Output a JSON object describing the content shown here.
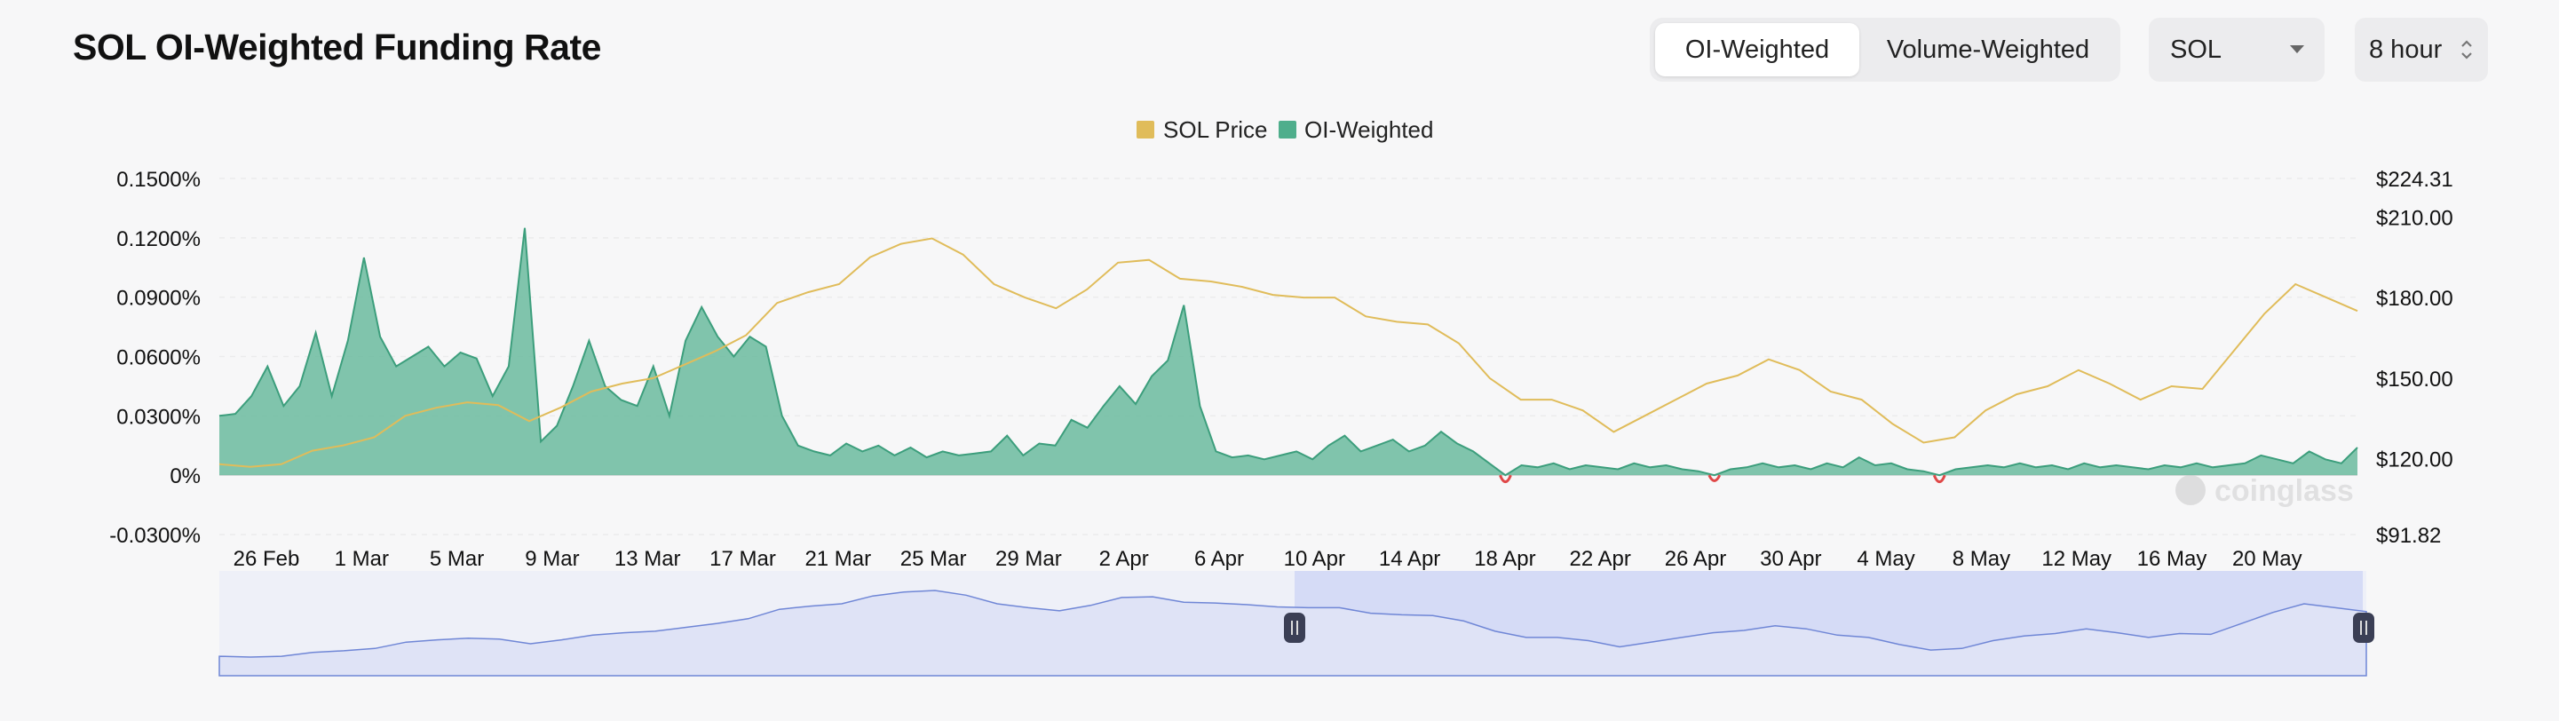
{
  "header": {
    "title": "SOL OI-Weighted Funding Rate",
    "tabs": [
      {
        "label": "OI-Weighted",
        "active": true
      },
      {
        "label": "Volume-Weighted",
        "active": false
      }
    ],
    "coin_select": {
      "value": "SOL",
      "icon": "caret-down-icon"
    },
    "interval_select": {
      "value": "8 hour",
      "icon": "updown-chevron-icon"
    }
  },
  "watermark": "coinglass",
  "colors": {
    "price": "#e0bc5a",
    "funding_pos_line": "#3c9e7c",
    "funding_pos_fill": "#6bbb9f",
    "funding_neg": "#e04848",
    "brush_line": "#6f86d6",
    "brush_fill": "#dfe3f6",
    "brush_selected": "#d5dbf6"
  },
  "chart_data": {
    "type": "area",
    "title": "SOL OI-Weighted Funding Rate",
    "legend": {
      "placement": "top-center",
      "items": [
        {
          "name": "SOL Price",
          "color": "#e0bc5a"
        },
        {
          "name": "OI-Weighted",
          "color": "#4fae8c"
        }
      ]
    },
    "x_ticks": [
      "26 Feb",
      "1 Mar",
      "5 Mar",
      "9 Mar",
      "13 Mar",
      "17 Mar",
      "21 Mar",
      "25 Mar",
      "29 Mar",
      "2 Apr",
      "6 Apr",
      "10 Apr",
      "14 Apr",
      "18 Apr",
      "22 Apr",
      "26 Apr",
      "30 Apr",
      "4 May",
      "8 May",
      "12 May",
      "16 May",
      "20 May"
    ],
    "y_left": {
      "ticks": [
        "0.1500%",
        "0.1200%",
        "0.0900%",
        "0.0600%",
        "0.0300%",
        "0%",
        "-0.0300%"
      ],
      "range": [
        -0.03,
        0.15
      ],
      "unit": "%"
    },
    "y_right": {
      "ticks": [
        "$224.31",
        "$210.00",
        "$180.00",
        "$150.00",
        "$120.00",
        "$91.82"
      ],
      "range": [
        91.82,
        224.31
      ]
    },
    "grid": true,
    "series": [
      {
        "name": "OI-Weighted",
        "axis": "left",
        "points": [
          [
            0,
            0.03
          ],
          [
            0.5,
            0.031
          ],
          [
            1,
            0.04
          ],
          [
            1.5,
            0.055
          ],
          [
            2,
            0.035
          ],
          [
            2.5,
            0.045
          ],
          [
            3,
            0.072
          ],
          [
            3.5,
            0.04
          ],
          [
            4,
            0.068
          ],
          [
            4.5,
            0.11
          ],
          [
            5,
            0.07
          ],
          [
            5.5,
            0.055
          ],
          [
            6,
            0.06
          ],
          [
            6.5,
            0.065
          ],
          [
            7,
            0.055
          ],
          [
            7.5,
            0.062
          ],
          [
            8,
            0.059
          ],
          [
            8.5,
            0.04
          ],
          [
            9,
            0.055
          ],
          [
            9.5,
            0.125
          ],
          [
            10,
            0.017
          ],
          [
            10.5,
            0.025
          ],
          [
            11,
            0.045
          ],
          [
            11.5,
            0.068
          ],
          [
            12,
            0.045
          ],
          [
            12.5,
            0.038
          ],
          [
            13,
            0.035
          ],
          [
            13.5,
            0.055
          ],
          [
            14,
            0.03
          ],
          [
            14.5,
            0.068
          ],
          [
            15,
            0.085
          ],
          [
            15.5,
            0.07
          ],
          [
            16,
            0.06
          ],
          [
            16.5,
            0.07
          ],
          [
            17,
            0.065
          ],
          [
            17.5,
            0.03
          ],
          [
            18,
            0.015
          ],
          [
            18.5,
            0.012
          ],
          [
            19,
            0.01
          ],
          [
            19.5,
            0.016
          ],
          [
            20,
            0.012
          ],
          [
            20.5,
            0.015
          ],
          [
            21,
            0.01
          ],
          [
            21.5,
            0.014
          ],
          [
            22,
            0.009
          ],
          [
            22.5,
            0.012
          ],
          [
            23,
            0.01
          ],
          [
            23.5,
            0.011
          ],
          [
            24,
            0.012
          ],
          [
            24.5,
            0.02
          ],
          [
            25,
            0.01
          ],
          [
            25.5,
            0.016
          ],
          [
            26,
            0.015
          ],
          [
            26.5,
            0.028
          ],
          [
            27,
            0.024
          ],
          [
            27.5,
            0.035
          ],
          [
            28,
            0.045
          ],
          [
            28.5,
            0.036
          ],
          [
            29,
            0.05
          ],
          [
            29.5,
            0.058
          ],
          [
            30,
            0.086
          ],
          [
            30.5,
            0.035
          ],
          [
            31,
            0.012
          ],
          [
            31.5,
            0.009
          ],
          [
            32,
            0.01
          ],
          [
            32.5,
            0.008
          ],
          [
            33,
            0.01
          ],
          [
            33.5,
            0.012
          ],
          [
            34,
            0.008
          ],
          [
            34.5,
            0.015
          ],
          [
            35,
            0.02
          ],
          [
            35.5,
            0.012
          ],
          [
            36,
            0.015
          ],
          [
            36.5,
            0.018
          ],
          [
            37,
            0.012
          ],
          [
            37.5,
            0.015
          ],
          [
            38,
            0.022
          ],
          [
            38.5,
            0.016
          ],
          [
            39,
            0.012
          ],
          [
            39.5,
            0.006
          ],
          [
            40,
            -0.004
          ],
          [
            40.5,
            0.005
          ],
          [
            41,
            0.004
          ],
          [
            41.5,
            0.006
          ],
          [
            42,
            0.003
          ],
          [
            42.5,
            0.005
          ],
          [
            43,
            0.004
          ],
          [
            43.5,
            0.003
          ],
          [
            44,
            0.006
          ],
          [
            44.5,
            0.004
          ],
          [
            45,
            0.005
          ],
          [
            45.5,
            0.003
          ],
          [
            46,
            0.002
          ],
          [
            46.5,
            -0.003
          ],
          [
            47,
            0.003
          ],
          [
            47.5,
            0.004
          ],
          [
            48,
            0.006
          ],
          [
            48.5,
            0.004
          ],
          [
            49,
            0.005
          ],
          [
            49.5,
            0.003
          ],
          [
            50,
            0.006
          ],
          [
            50.5,
            0.004
          ],
          [
            51,
            0.009
          ],
          [
            51.5,
            0.005
          ],
          [
            52,
            0.006
          ],
          [
            52.5,
            0.003
          ],
          [
            53,
            0.002
          ],
          [
            53.5,
            -0.004
          ],
          [
            54,
            0.003
          ],
          [
            54.5,
            0.004
          ],
          [
            55,
            0.005
          ],
          [
            55.5,
            0.004
          ],
          [
            56,
            0.006
          ],
          [
            56.5,
            0.004
          ],
          [
            57,
            0.005
          ],
          [
            57.5,
            0.003
          ],
          [
            58,
            0.006
          ],
          [
            58.5,
            0.004
          ],
          [
            59,
            0.005
          ],
          [
            59.5,
            0.004
          ],
          [
            60,
            0.003
          ],
          [
            60.5,
            0.005
          ],
          [
            61,
            0.004
          ],
          [
            61.5,
            0.006
          ],
          [
            62,
            0.004
          ],
          [
            62.5,
            0.005
          ],
          [
            63,
            0.006
          ],
          [
            63.5,
            0.01
          ],
          [
            64,
            0.008
          ],
          [
            64.5,
            0.006
          ],
          [
            65,
            0.012
          ],
          [
            65.5,
            0.008
          ],
          [
            66,
            0.006
          ],
          [
            66.5,
            0.014
          ]
        ]
      },
      {
        "name": "SOL Price",
        "axis": "right",
        "points": [
          [
            0,
            118
          ],
          [
            1,
            117
          ],
          [
            2,
            118
          ],
          [
            3,
            123
          ],
          [
            4,
            125
          ],
          [
            5,
            128
          ],
          [
            6,
            136
          ],
          [
            7,
            139
          ],
          [
            8,
            141
          ],
          [
            9,
            140
          ],
          [
            10,
            134
          ],
          [
            11,
            139
          ],
          [
            12,
            145
          ],
          [
            13,
            148
          ],
          [
            14,
            150
          ],
          [
            15,
            155
          ],
          [
            16,
            160
          ],
          [
            17,
            166
          ],
          [
            18,
            178
          ],
          [
            19,
            182
          ],
          [
            20,
            185
          ],
          [
            21,
            195
          ],
          [
            22,
            200
          ],
          [
            23,
            202
          ],
          [
            24,
            196
          ],
          [
            25,
            185
          ],
          [
            26,
            180
          ],
          [
            27,
            176
          ],
          [
            28,
            183
          ],
          [
            29,
            193
          ],
          [
            30,
            194
          ],
          [
            31,
            187
          ],
          [
            32,
            186
          ],
          [
            33,
            184
          ],
          [
            34,
            181
          ],
          [
            35,
            180
          ],
          [
            36,
            180
          ],
          [
            37,
            173
          ],
          [
            38,
            171
          ],
          [
            39,
            170
          ],
          [
            40,
            163
          ],
          [
            41,
            150
          ],
          [
            42,
            142
          ],
          [
            43,
            142
          ],
          [
            44,
            138
          ],
          [
            45,
            130
          ],
          [
            46,
            136
          ],
          [
            47,
            142
          ],
          [
            48,
            148
          ],
          [
            49,
            151
          ],
          [
            50,
            157
          ],
          [
            51,
            153
          ],
          [
            52,
            145
          ],
          [
            53,
            142
          ],
          [
            54,
            133
          ],
          [
            55,
            126
          ],
          [
            56,
            128
          ],
          [
            57,
            138
          ],
          [
            58,
            144
          ],
          [
            59,
            147
          ],
          [
            60,
            153
          ],
          [
            61,
            148
          ],
          [
            62,
            142
          ],
          [
            63,
            147
          ],
          [
            64,
            146
          ],
          [
            65,
            160
          ],
          [
            66,
            174
          ],
          [
            67,
            185
          ],
          [
            68,
            180
          ],
          [
            69,
            175
          ]
        ]
      }
    ]
  }
}
